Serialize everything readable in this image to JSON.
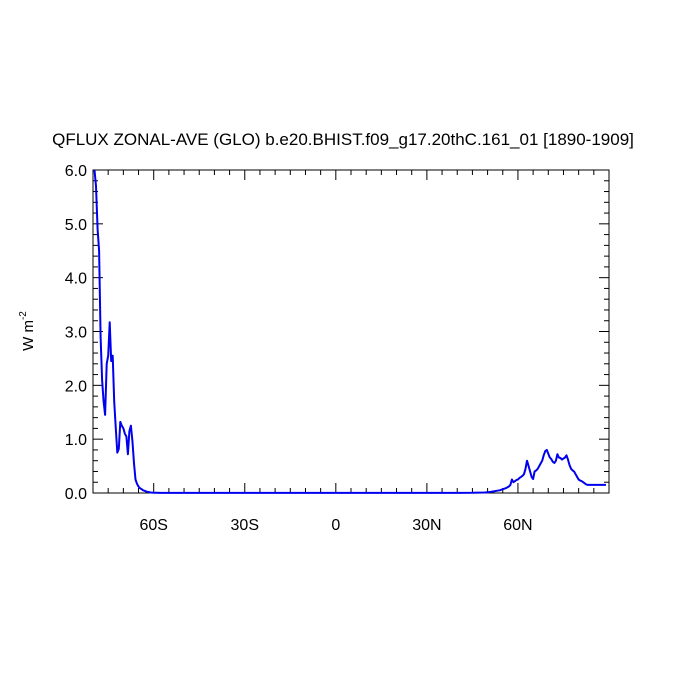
{
  "chart_data": {
    "type": "line",
    "title": "QFLUX ZONAL-AVE (GLO) b.e20.BHIST.f09_g17.20thC.161_01 [1890-1909]",
    "ylabel": "W m",
    "ylabel_sup": "-2",
    "xlim": [
      -80,
      90
    ],
    "ylim": [
      0,
      6
    ],
    "x_ticks": [
      {
        "value": -60,
        "label": "60S"
      },
      {
        "value": -30,
        "label": "30S"
      },
      {
        "value": 0,
        "label": "0"
      },
      {
        "value": 30,
        "label": "30N"
      },
      {
        "value": 60,
        "label": "60N"
      }
    ],
    "y_ticks": [
      {
        "value": 0,
        "label": "0.0"
      },
      {
        "value": 1,
        "label": "1.0"
      },
      {
        "value": 2,
        "label": "2.0"
      },
      {
        "value": 3,
        "label": "3.0"
      },
      {
        "value": 4,
        "label": "4.0"
      },
      {
        "value": 5,
        "label": "5.0"
      },
      {
        "value": 6,
        "label": "6.0"
      }
    ],
    "grid": false,
    "series": [
      {
        "color": "#0000ee",
        "x": [
          -79.5,
          -79.0,
          -78.5,
          -78.0,
          -77.5,
          -77.0,
          -76.5,
          -76.0,
          -75.5,
          -75.0,
          -74.5,
          -74.0,
          -73.5,
          -73.0,
          -72.5,
          -72.0,
          -71.5,
          -71.0,
          -70.5,
          -70.0,
          -69.5,
          -69.0,
          -68.5,
          -68.0,
          -67.5,
          -67.0,
          -66.5,
          -66.0,
          -65.5,
          -65.0,
          -64.5,
          -64.0,
          -63.5,
          -63.0,
          -62.5,
          -62.0,
          -61.0,
          -60.0,
          -59.0,
          -58.0,
          -55.0,
          -50.0,
          -40.0,
          -30.0,
          -20.0,
          -10.0,
          0.0,
          10.0,
          20.0,
          30.0,
          40.0,
          45.0,
          47.0,
          49.0,
          50.0,
          51.0,
          52.0,
          53.0,
          54.0,
          55.0,
          56.0,
          57.0,
          57.5,
          58.0,
          58.5,
          59.0,
          59.5,
          60.0,
          60.5,
          61.0,
          61.5,
          62.0,
          62.5,
          63.0,
          63.5,
          64.0,
          64.5,
          65.0,
          65.5,
          66.0,
          66.5,
          67.0,
          67.5,
          68.0,
          68.5,
          69.0,
          69.5,
          70.0,
          70.5,
          71.0,
          71.5,
          72.0,
          72.5,
          73.0,
          73.5,
          74.0,
          74.5,
          75.0,
          75.5,
          76.0,
          76.5,
          77.0,
          77.5,
          78.0,
          78.5,
          79.0,
          79.5,
          80.0,
          80.5,
          81.0,
          81.5,
          82.0,
          82.5,
          83.0,
          83.5,
          84.0,
          84.5,
          85.0,
          85.5,
          86.0,
          87.0,
          88.0,
          89.0
        ],
        "y": [
          6.0,
          5.7,
          4.9,
          4.5,
          2.9,
          2.1,
          1.7,
          1.45,
          2.4,
          2.55,
          3.17,
          2.45,
          2.55,
          1.7,
          1.2,
          0.75,
          0.82,
          1.32,
          1.25,
          1.2,
          1.1,
          1.05,
          0.72,
          1.15,
          1.25,
          0.95,
          0.55,
          0.25,
          0.17,
          0.12,
          0.09,
          0.07,
          0.05,
          0.04,
          0.03,
          0.02,
          0.01,
          0.005,
          0.003,
          0.002,
          0.001,
          0.001,
          0.001,
          0.001,
          0.001,
          0.001,
          0.001,
          0.001,
          0.001,
          0.001,
          0.002,
          0.004,
          0.008,
          0.01,
          0.015,
          0.02,
          0.03,
          0.04,
          0.05,
          0.07,
          0.09,
          0.12,
          0.15,
          0.25,
          0.2,
          0.22,
          0.24,
          0.25,
          0.28,
          0.3,
          0.32,
          0.35,
          0.45,
          0.6,
          0.5,
          0.4,
          0.3,
          0.26,
          0.4,
          0.42,
          0.45,
          0.5,
          0.55,
          0.6,
          0.7,
          0.78,
          0.8,
          0.73,
          0.66,
          0.63,
          0.58,
          0.56,
          0.6,
          0.72,
          0.66,
          0.65,
          0.62,
          0.64,
          0.66,
          0.7,
          0.62,
          0.52,
          0.45,
          0.42,
          0.4,
          0.35,
          0.3,
          0.25,
          0.23,
          0.22,
          0.2,
          0.18,
          0.16,
          0.15,
          0.15,
          0.15,
          0.15,
          0.15,
          0.15,
          0.15,
          0.15,
          0.15,
          0.15
        ]
      }
    ]
  }
}
